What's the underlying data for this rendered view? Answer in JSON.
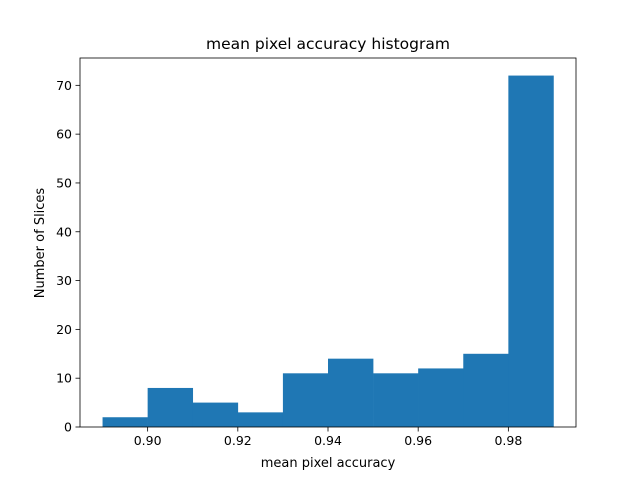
{
  "chart_data": {
    "type": "bar",
    "title": "mean pixel accuracy histogram",
    "xlabel": "mean pixel accuracy",
    "ylabel": "Number of Slices",
    "bin_edges": [
      0.89,
      0.9,
      0.91,
      0.92,
      0.93,
      0.94,
      0.95,
      0.96,
      0.97,
      0.98,
      0.99
    ],
    "values": [
      2,
      8,
      5,
      3,
      11,
      14,
      11,
      12,
      15,
      72
    ],
    "xlim": [
      0.885,
      0.995
    ],
    "ylim": [
      0,
      75.6
    ],
    "xticks": [
      {
        "value": 0.9,
        "label": "0.90"
      },
      {
        "value": 0.92,
        "label": "0.92"
      },
      {
        "value": 0.94,
        "label": "0.94"
      },
      {
        "value": 0.96,
        "label": "0.96"
      },
      {
        "value": 0.98,
        "label": "0.98"
      }
    ],
    "yticks": [
      {
        "value": 0,
        "label": "0"
      },
      {
        "value": 10,
        "label": "10"
      },
      {
        "value": 20,
        "label": "20"
      },
      {
        "value": 30,
        "label": "30"
      },
      {
        "value": 40,
        "label": "40"
      },
      {
        "value": 50,
        "label": "50"
      },
      {
        "value": 60,
        "label": "60"
      },
      {
        "value": 70,
        "label": "70"
      }
    ],
    "bar_color": "#1f77b4",
    "grid": false,
    "legend": "none"
  }
}
